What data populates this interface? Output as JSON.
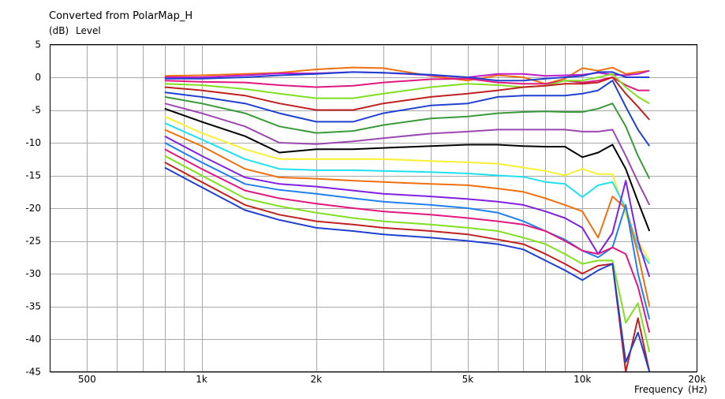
{
  "chart_data": {
    "type": "line",
    "title": "Converted from PolarMap_H",
    "subtitle_unit": "(dB)",
    "ylabel": "Level",
    "xlabel": "Frequency",
    "xunit": "(Hz)",
    "xscale": "log",
    "xlim": [
      400,
      20000
    ],
    "ylim": [
      -45,
      5
    ],
    "grid": true,
    "yticks": [
      5,
      0,
      -5,
      -10,
      -15,
      -20,
      -25,
      -30,
      -35,
      -40,
      -45
    ],
    "xtick_labels": [
      {
        "value": 500,
        "label": "500"
      },
      {
        "value": 1000,
        "label": "1k"
      },
      {
        "value": 2000,
        "label": "2k"
      },
      {
        "value": 5000,
        "label": "5k"
      },
      {
        "value": 10000,
        "label": "10k"
      },
      {
        "value": 20000,
        "label": "20k"
      }
    ],
    "x": [
      800,
      1000,
      1300,
      1600,
      2000,
      2500,
      3000,
      4000,
      5000,
      6000,
      7000,
      8000,
      9000,
      10000,
      11000,
      12000,
      13000,
      14000,
      15000
    ],
    "series": [
      {
        "color": "#f07010",
        "values": [
          0.2,
          0.3,
          0.5,
          0.7,
          1.2,
          1.5,
          1.4,
          0.2,
          -0.5,
          0.3,
          0,
          -1,
          -0.2,
          1.4,
          1.0,
          1.5,
          0.5,
          0.8,
          1.0
        ]
      },
      {
        "color": "#c01cc8",
        "values": [
          0,
          0,
          0.3,
          0.6,
          0.6,
          0.8,
          0.7,
          0.3,
          0,
          0.5,
          0.5,
          0.2,
          0.3,
          0.4,
          0.7,
          0.4,
          0.3,
          0.5,
          1.0
        ]
      },
      {
        "color": "#2040d0",
        "values": [
          -0.2,
          -0.2,
          0,
          0.3,
          0.5,
          0.8,
          0.7,
          0.4,
          0,
          -0.5,
          -0.5,
          -0.2,
          0,
          0.2,
          0.8,
          0.8,
          0,
          0,
          0
        ]
      },
      {
        "color": "#e01880",
        "values": [
          -0.5,
          -0.7,
          -0.8,
          -1.2,
          -1.5,
          -1.3,
          -0.8,
          -0.3,
          -0.2,
          -0.8,
          -1.0,
          -1.0,
          -0.5,
          -0.8,
          -0.5,
          0,
          -1.2,
          -2,
          -2
        ]
      },
      {
        "color": "#80e020",
        "values": [
          -1,
          -1.2,
          -1.8,
          -2.5,
          -3.2,
          -3.2,
          -2.5,
          -1.5,
          -1.0,
          -1.2,
          -1.5,
          -1.3,
          -0.5,
          -0.5,
          0,
          0.5,
          -1.5,
          -3,
          -4
        ]
      },
      {
        "color": "#c02020",
        "values": [
          -1.5,
          -2,
          -2.8,
          -4,
          -5,
          -5,
          -4,
          -3,
          -2.5,
          -2,
          -1.5,
          -1.3,
          -1,
          -1,
          -0.8,
          0,
          -2.5,
          -4.5,
          -6.5
        ]
      },
      {
        "color": "#2040d0",
        "values": [
          -2.3,
          -3,
          -4,
          -5.5,
          -6.8,
          -6.8,
          -5.5,
          -4.3,
          -4,
          -3,
          -2.8,
          -2.8,
          -2.8,
          -2.5,
          -2,
          -0.5,
          -4.5,
          -8,
          -10.5
        ]
      },
      {
        "color": "#3a9a3a",
        "values": [
          -3,
          -4,
          -5.5,
          -7.5,
          -8.5,
          -8.2,
          -7.3,
          -6.3,
          -6,
          -5.5,
          -5.3,
          -5.2,
          -5.3,
          -5.3,
          -4.8,
          -4,
          -7.5,
          -12,
          -15.5
        ]
      },
      {
        "color": "#9a48b0",
        "values": [
          -4,
          -5.5,
          -7.5,
          -10,
          -10.2,
          -9.8,
          -9.3,
          -8.6,
          -8.3,
          -8.0,
          -8.0,
          -8.0,
          -8.0,
          -8.3,
          -8.3,
          -8.0,
          -12,
          -16,
          -19.5
        ]
      },
      {
        "color": "#000000",
        "values": [
          -4.8,
          -6.8,
          -9,
          -11.5,
          -11,
          -11,
          -10.8,
          -10.5,
          -10.3,
          -10.3,
          -10.5,
          -10.6,
          -10.6,
          -12.2,
          -11.5,
          -10.3,
          -14,
          -19,
          -23.5
        ]
      },
      {
        "color": "#f8f030",
        "values": [
          -6,
          -8.5,
          -11,
          -12.5,
          -12.5,
          -12.5,
          -12.5,
          -12.8,
          -13.0,
          -13.2,
          -13.8,
          -14.3,
          -15,
          -14,
          -14.8,
          -14.8,
          -21,
          -25,
          -28
        ]
      },
      {
        "color": "#20e0f0",
        "values": [
          -7,
          -9.5,
          -12.5,
          -14,
          -14.2,
          -14.2,
          -14.3,
          -14.5,
          -14.7,
          -15,
          -15.2,
          -16,
          -16.3,
          -18.3,
          -16.5,
          -16,
          -20,
          -26,
          -28.5
        ]
      },
      {
        "color": "#f07010",
        "values": [
          -8,
          -10.5,
          -14,
          -15.3,
          -15.5,
          -15.8,
          -16,
          -16.3,
          -16.5,
          -17,
          -17.5,
          -18.5,
          -19.5,
          -20.5,
          -24.5,
          -18.2,
          -20,
          -27,
          -35
        ]
      },
      {
        "color": "#8020e0",
        "values": [
          -9,
          -12,
          -15.3,
          -16.3,
          -16.7,
          -17.3,
          -17.8,
          -18.2,
          -18.6,
          -19,
          -19.5,
          -20.5,
          -21.5,
          -23,
          -27,
          -23.8,
          -15.8,
          -25,
          -30.5
        ]
      },
      {
        "color": "#2080f0",
        "values": [
          -10,
          -13,
          -16.3,
          -17.2,
          -17.8,
          -18.5,
          -19,
          -19.5,
          -20,
          -20.7,
          -22,
          -23.5,
          -24.8,
          -26.5,
          -27.5,
          -26,
          -19.5,
          -30,
          -37
        ]
      },
      {
        "color": "#e01880",
        "values": [
          -11,
          -14,
          -17.3,
          -18.5,
          -19.3,
          -20,
          -20.5,
          -21,
          -21.5,
          -22,
          -22.5,
          -23.5,
          -25,
          -26.5,
          -27,
          -26,
          -27,
          -32,
          -39
        ]
      },
      {
        "color": "#80e020",
        "values": [
          -12,
          -15,
          -18.5,
          -19.7,
          -20.7,
          -21.5,
          -22,
          -22.5,
          -23,
          -23.5,
          -24.5,
          -25.5,
          -27,
          -28.5,
          -28,
          -28,
          -37.5,
          -34.5,
          -42
        ]
      },
      {
        "color": "#c02020",
        "values": [
          -13,
          -16,
          -19.5,
          -21,
          -22,
          -22.5,
          -23,
          -23.5,
          -24,
          -24.8,
          -25.5,
          -27,
          -28.5,
          -30,
          -28.8,
          -28.5,
          -45,
          -36.8,
          -45
        ]
      },
      {
        "color": "#2040d0",
        "values": [
          -13.8,
          -16.8,
          -20.3,
          -21.8,
          -23,
          -23.5,
          -24,
          -24.5,
          -25,
          -25.5,
          -26.3,
          -28,
          -29.5,
          -31,
          -29.5,
          -28.5,
          -43.5,
          -39,
          -45
        ]
      }
    ]
  }
}
